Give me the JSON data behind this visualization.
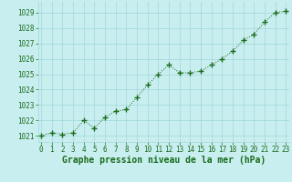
{
  "x": [
    0,
    1,
    2,
    3,
    4,
    5,
    6,
    7,
    8,
    9,
    10,
    11,
    12,
    13,
    14,
    15,
    16,
    17,
    18,
    19,
    20,
    21,
    22,
    23
  ],
  "y": [
    1021.0,
    1021.2,
    1021.1,
    1021.2,
    1022.0,
    1021.5,
    1022.2,
    1022.6,
    1022.7,
    1023.5,
    1024.3,
    1025.0,
    1025.6,
    1025.1,
    1025.1,
    1025.2,
    1025.6,
    1026.0,
    1026.5,
    1027.2,
    1027.6,
    1028.4,
    1029.0,
    1029.1
  ],
  "line_color": "#1a6b1a",
  "marker_color": "#1a6b1a",
  "bg_color": "#c8eef0",
  "grid_color": "#a0d8d8",
  "title": "Graphe pression niveau de la mer (hPa)",
  "title_color": "#1a6b1a",
  "ylim_min": 1020.6,
  "ylim_max": 1029.7,
  "xlim_min": -0.3,
  "xlim_max": 23.3,
  "yticks": [
    1021,
    1022,
    1023,
    1024,
    1025,
    1026,
    1027,
    1028,
    1029
  ],
  "xticks": [
    0,
    1,
    2,
    3,
    4,
    5,
    6,
    7,
    8,
    9,
    10,
    11,
    12,
    13,
    14,
    15,
    16,
    17,
    18,
    19,
    20,
    21,
    22,
    23
  ],
  "tick_fontsize": 5.5,
  "title_fontsize": 7.0
}
